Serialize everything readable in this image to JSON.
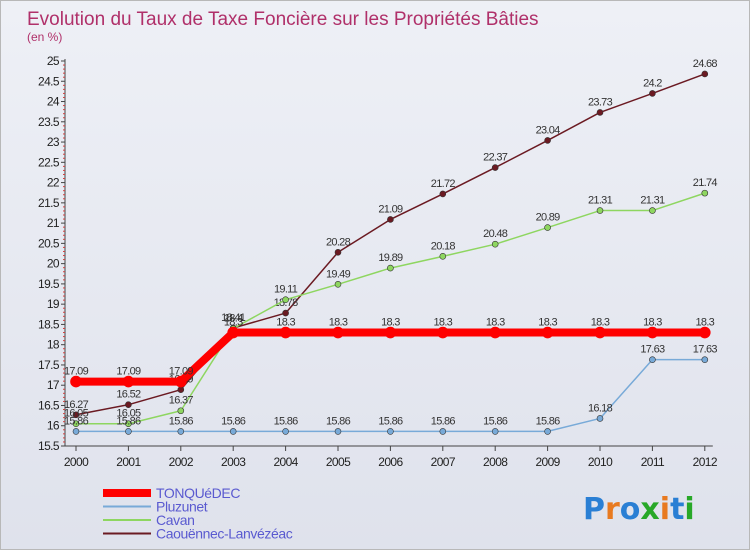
{
  "chart_data": {
    "type": "line",
    "title": "Evolution du Taux de Taxe Foncière sur les Propriétés Bâties",
    "subtitle": "(en %)",
    "xlabel": "",
    "ylabel": "",
    "categories": [
      "2000",
      "2001",
      "2002",
      "2003",
      "2004",
      "2005",
      "2006",
      "2007",
      "2008",
      "2009",
      "2010",
      "2011",
      "2012"
    ],
    "ylim": [
      15.5,
      25
    ],
    "yticks": [
      "15.5",
      "16",
      "16.5",
      "17",
      "17.5",
      "18",
      "18.5",
      "19",
      "19.5",
      "20",
      "20.5",
      "21",
      "21.5",
      "22",
      "22.5",
      "23",
      "23.5",
      "24",
      "24.5",
      "25"
    ],
    "grid": false,
    "legend_position": "bottom-left",
    "series": [
      {
        "name": "Caouënnec-Lanvézéac",
        "color": "#6b1a22",
        "values": [
          16.27,
          16.52,
          16.89,
          18.41,
          18.78,
          20.28,
          21.09,
          21.72,
          22.37,
          23.04,
          23.73,
          24.2,
          24.68
        ],
        "labels": [
          "16.27",
          "16.52",
          "16.89",
          "18.41",
          "18.78",
          "20.28",
          "21.09",
          "21.72",
          "22.37",
          "23.04",
          "23.73",
          "24.2",
          "24.68"
        ]
      },
      {
        "name": "Cavan",
        "color": "#8ed660",
        "values": [
          16.05,
          16.05,
          16.37,
          18.4,
          19.11,
          19.49,
          19.89,
          20.18,
          20.48,
          20.89,
          21.31,
          21.31,
          21.74
        ],
        "labels": [
          "16.05",
          "16.05",
          "16.37",
          "18.4",
          "19.11",
          "19.49",
          "19.89",
          "20.18",
          "20.48",
          "20.89",
          "21.31",
          "21.31",
          "21.74"
        ]
      },
      {
        "name": "Pluzunet",
        "color": "#78aad8",
        "values": [
          15.86,
          15.86,
          15.86,
          15.86,
          15.86,
          15.86,
          15.86,
          15.86,
          15.86,
          15.86,
          16.18,
          17.63,
          17.63
        ],
        "labels": [
          "15.86",
          "15.86",
          "15.86",
          "15.86",
          "15.86",
          "15.86",
          "15.86",
          "15.86",
          "15.86",
          "15.86",
          "16.18",
          "17.63",
          "17.63"
        ]
      },
      {
        "name": "TONQUéDEC",
        "color": "#ff0000",
        "values": [
          17.09,
          17.09,
          17.09,
          18.3,
          18.3,
          18.3,
          18.3,
          18.3,
          18.3,
          18.3,
          18.3,
          18.3,
          18.3
        ],
        "labels": [
          "17.09",
          "17.09",
          "17.09",
          "18.3",
          "18.3",
          "18.3",
          "18.3",
          "18.3",
          "18.3",
          "18.3",
          "18.3",
          "18.3",
          "18.3"
        ]
      }
    ],
    "legend": [
      "TONQUéDEC",
      "Pluzunet",
      "Cavan",
      "Caouënnec-Lanvézéac"
    ]
  },
  "logo": {
    "text": "Proxiti",
    "colors": [
      "#2a7fd4",
      "#e87a20",
      "#2a7fd4",
      "#28a828",
      "#e87a20",
      "#2a7fd4",
      "#28a828"
    ]
  }
}
